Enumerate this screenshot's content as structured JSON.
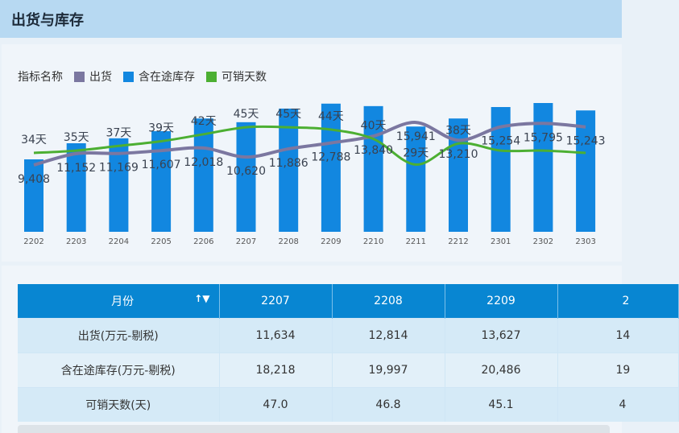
{
  "header": {
    "title": "出货与库存"
  },
  "legend": {
    "label": "指标名称",
    "items": [
      {
        "name": "出货",
        "color": "#7b77a0"
      },
      {
        "name": "含在途库存",
        "color": "#1287e0"
      },
      {
        "name": "可销天数",
        "color": "#4caf32"
      }
    ]
  },
  "chart_data": {
    "type": "bar+line",
    "categories": [
      "2202",
      "2203",
      "2204",
      "2205",
      "2206",
      "2207",
      "2208",
      "2209",
      "2210",
      "2211",
      "2212",
      "2301",
      "2302",
      "2303"
    ],
    "series": [
      {
        "name": "含在途库存",
        "type": "bar",
        "color": "#1287e0",
        "values": [
          11700,
          14300,
          15100,
          16250,
          18300,
          17700,
          19900,
          20700,
          20300,
          17000,
          18300,
          20150,
          20800,
          19600
        ]
      },
      {
        "name": "出货",
        "type": "line",
        "color": "#7b77a0",
        "values": [
          9408,
          11152,
          11169,
          11607,
          12018,
          10620,
          11886,
          12788,
          13840,
          15941,
          13210,
          15254,
          15795,
          15243
        ],
        "labels": [
          "9,408",
          "11,152",
          "11,169",
          "11,607",
          "12,018",
          "10,620",
          "11,886",
          "12,788",
          "13,840",
          "15,941",
          "13,210",
          "15,254",
          "15,795",
          "15,243"
        ]
      },
      {
        "name": "可销天数",
        "type": "line",
        "color": "#4caf32",
        "values": [
          34,
          35,
          37,
          39,
          42,
          45,
          45,
          44,
          40,
          29,
          38,
          35,
          35,
          34
        ],
        "labels": [
          "34天",
          "35天",
          "37天",
          "39天",
          "42天",
          "45天",
          "45天",
          "44天",
          "40天",
          "29天",
          "38天",
          "",
          "",
          ""
        ]
      }
    ]
  },
  "table": {
    "header": {
      "label": "月份",
      "sort_icon": "sort-filter-icon",
      "columns": [
        "2207",
        "2208",
        "2209",
        "2"
      ]
    },
    "rows": [
      {
        "label": "出货(万元-剔税)",
        "values": [
          "11,634",
          "12,814",
          "13,627",
          "14"
        ]
      },
      {
        "label": "含在途库存(万元-剔税)",
        "values": [
          "18,218",
          "19,997",
          "20,486",
          "19"
        ]
      },
      {
        "label": "可销天数(天)",
        "values": [
          "47.0",
          "46.8",
          "45.1",
          "4"
        ]
      }
    ]
  }
}
